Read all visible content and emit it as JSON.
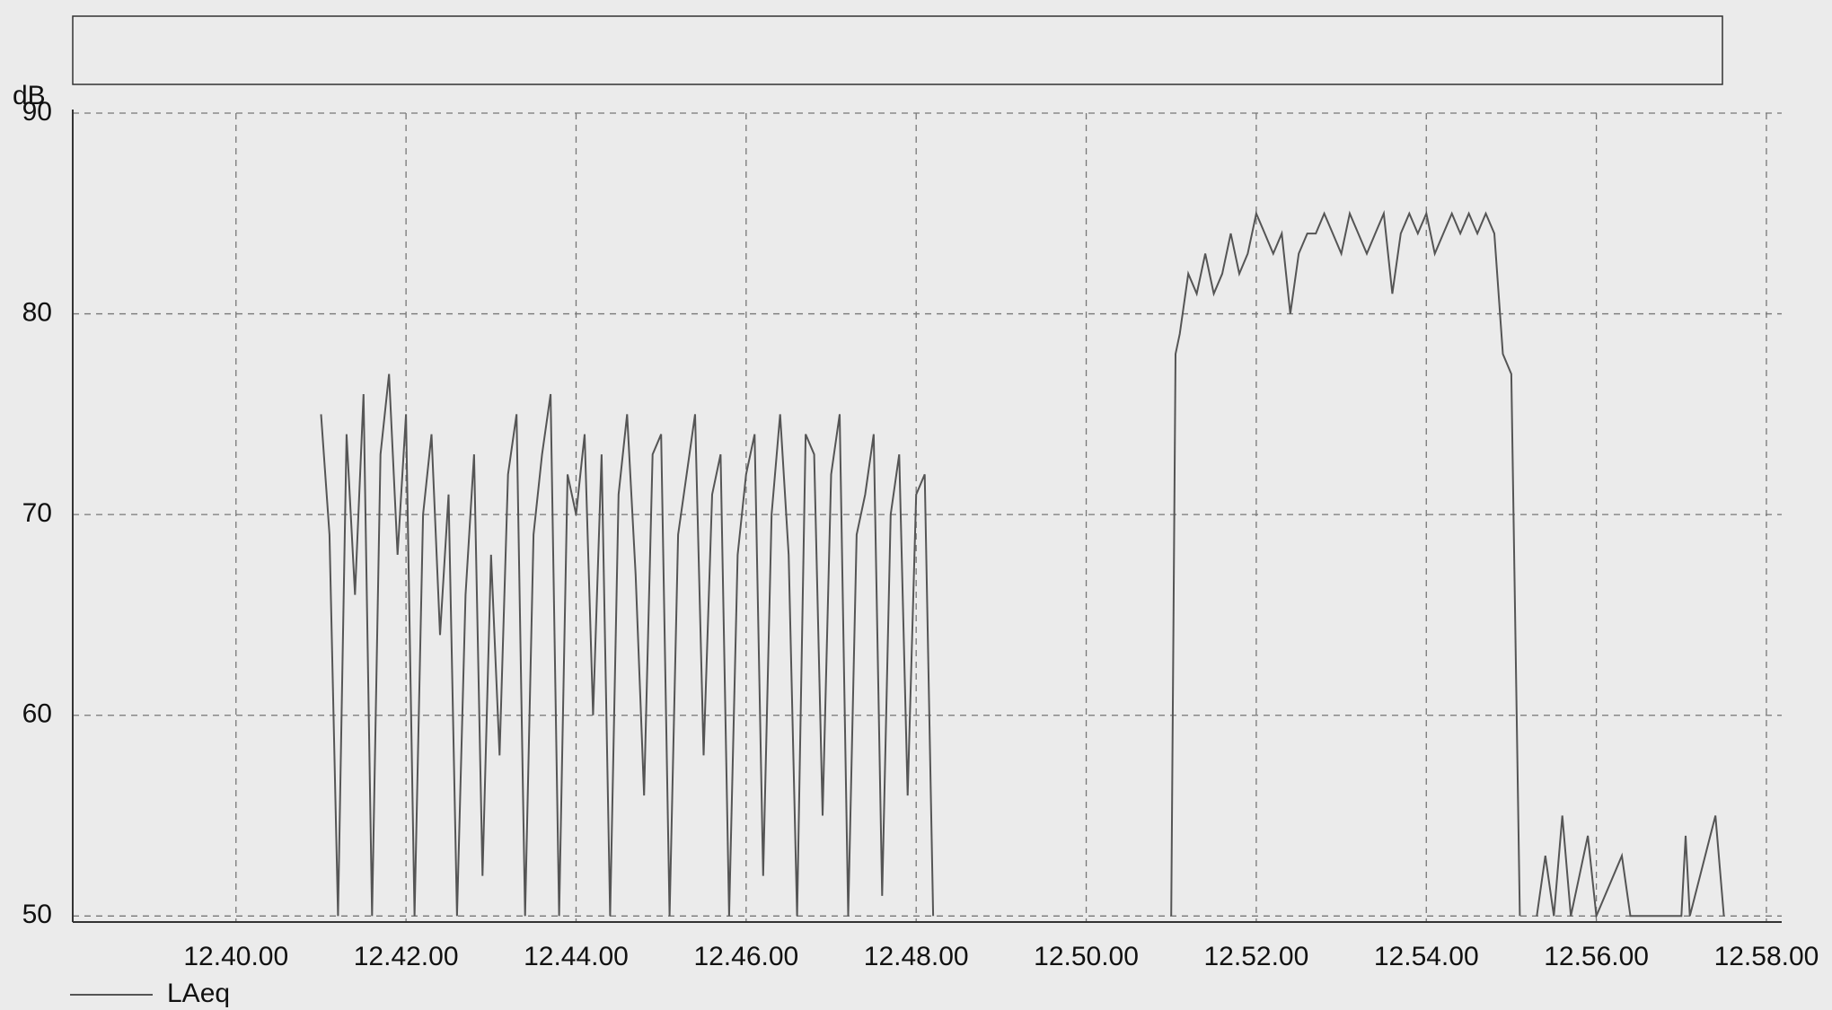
{
  "chart_data": {
    "type": "line",
    "y_label": "dB",
    "x": [
      41.0,
      41.1,
      41.2,
      41.3,
      41.4,
      41.5,
      41.6,
      41.7,
      41.8,
      41.9,
      42.0,
      42.1,
      42.2,
      42.3,
      42.4,
      42.5,
      42.6,
      42.7,
      42.8,
      42.9,
      43.0,
      43.1,
      43.2,
      43.3,
      43.4,
      43.5,
      43.6,
      43.7,
      43.8,
      43.9,
      44.0,
      44.1,
      44.2,
      44.3,
      44.4,
      44.5,
      44.6,
      44.7,
      44.8,
      44.9,
      45.0,
      45.1,
      45.2,
      45.3,
      45.4,
      45.5,
      45.6,
      45.7,
      45.8,
      45.9,
      46.0,
      46.1,
      46.2,
      46.3,
      46.4,
      46.5,
      46.6,
      46.7,
      46.8,
      46.9,
      47.0,
      47.1,
      47.2,
      47.3,
      47.4,
      47.5,
      47.6,
      47.7,
      47.8,
      47.9,
      48.0,
      48.1,
      48.2,
      49.5,
      51.0,
      51.05,
      51.1,
      51.2,
      51.3,
      51.4,
      51.5,
      51.6,
      51.7,
      51.8,
      51.9,
      52.0,
      52.1,
      52.2,
      52.3,
      52.4,
      52.5,
      52.6,
      52.7,
      52.8,
      52.9,
      53.0,
      53.1,
      53.2,
      53.3,
      53.4,
      53.5,
      53.6,
      53.7,
      53.8,
      53.9,
      54.0,
      54.1,
      54.2,
      54.3,
      54.4,
      54.5,
      54.6,
      54.7,
      54.8,
      54.9,
      55.0,
      55.1,
      55.2,
      55.3,
      55.4,
      55.5,
      55.6,
      55.7,
      55.8,
      55.9,
      56.0,
      56.3,
      56.4,
      57.0,
      57.05,
      57.1,
      57.4,
      57.5
    ],
    "series": [
      {
        "name": "LAeq",
        "color": "#555555",
        "values": [
          75,
          69,
          50,
          74,
          66,
          76,
          50,
          73,
          77,
          68,
          75,
          50,
          70,
          74,
          64,
          71,
          50,
          66,
          73,
          52,
          68,
          58,
          72,
          75,
          50,
          69,
          73,
          76,
          50,
          72,
          70,
          74,
          60,
          73,
          50,
          71,
          75,
          67,
          56,
          73,
          74,
          50,
          69,
          72,
          75,
          58,
          71,
          73,
          50,
          68,
          72,
          74,
          52,
          70,
          75,
          68,
          50,
          74,
          73,
          55,
          72,
          75,
          50,
          69,
          71,
          74,
          51,
          70,
          73,
          56,
          71,
          72,
          50,
          null,
          50,
          78,
          79,
          82,
          81,
          83,
          81,
          82,
          84,
          82,
          83,
          85,
          84,
          83,
          84,
          80,
          83,
          84,
          84,
          85,
          84,
          83,
          85,
          84,
          83,
          84,
          85,
          81,
          84,
          85,
          84,
          85,
          83,
          84,
          85,
          84,
          85,
          84,
          85,
          84,
          78,
          77,
          50,
          null,
          50,
          53,
          50,
          55,
          50,
          52,
          54,
          50,
          53,
          50,
          50,
          54,
          50,
          55,
          50
        ]
      }
    ],
    "xlim": [
      38.08,
      58.18
    ],
    "ylim": [
      49.7,
      90
    ],
    "xticks": [
      {
        "value": 40,
        "label": "12.40.00"
      },
      {
        "value": 42,
        "label": "12.42.00"
      },
      {
        "value": 44,
        "label": "12.44.00"
      },
      {
        "value": 46,
        "label": "12.46.00"
      },
      {
        "value": 48,
        "label": "12.48.00"
      },
      {
        "value": 50,
        "label": "12.50.00"
      },
      {
        "value": 52,
        "label": "12.52.00"
      },
      {
        "value": 54,
        "label": "12.54.00"
      },
      {
        "value": 56,
        "label": "12.56.00"
      },
      {
        "value": 58,
        "label": "12.58.00"
      }
    ],
    "yticks": [
      50,
      60,
      70,
      80,
      90
    ],
    "grid": true
  }
}
